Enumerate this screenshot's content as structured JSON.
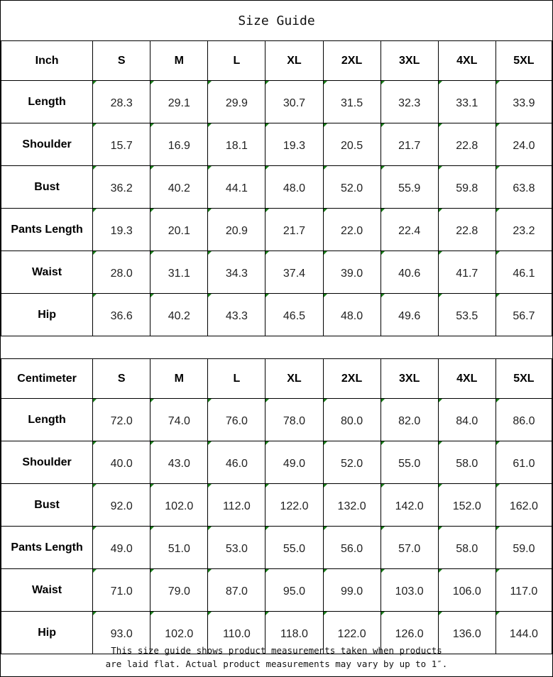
{
  "title": "Size Guide",
  "sizes": [
    "S",
    "M",
    "L",
    "XL",
    "2XL",
    "3XL",
    "4XL",
    "5XL"
  ],
  "tables": [
    {
      "unit": "Inch",
      "rows": [
        {
          "label": "Length",
          "values": [
            "28.3",
            "29.1",
            "29.9",
            "30.7",
            "31.5",
            "32.3",
            "33.1",
            "33.9"
          ]
        },
        {
          "label": "Shoulder",
          "values": [
            "15.7",
            "16.9",
            "18.1",
            "19.3",
            "20.5",
            "21.7",
            "22.8",
            "24.0"
          ]
        },
        {
          "label": "Bust",
          "values": [
            "36.2",
            "40.2",
            "44.1",
            "48.0",
            "52.0",
            "55.9",
            "59.8",
            "63.8"
          ]
        },
        {
          "label": "Pants Length",
          "values": [
            "19.3",
            "20.1",
            "20.9",
            "21.7",
            "22.0",
            "22.4",
            "22.8",
            "23.2"
          ]
        },
        {
          "label": "Waist",
          "values": [
            "28.0",
            "31.1",
            "34.3",
            "37.4",
            "39.0",
            "40.6",
            "41.7",
            "46.1"
          ]
        },
        {
          "label": "Hip",
          "values": [
            "36.6",
            "40.2",
            "43.3",
            "46.5",
            "48.0",
            "49.6",
            "53.5",
            "56.7"
          ]
        }
      ]
    },
    {
      "unit": "Centimeter",
      "rows": [
        {
          "label": "Length",
          "values": [
            "72.0",
            "74.0",
            "76.0",
            "78.0",
            "80.0",
            "82.0",
            "84.0",
            "86.0"
          ]
        },
        {
          "label": "Shoulder",
          "values": [
            "40.0",
            "43.0",
            "46.0",
            "49.0",
            "52.0",
            "55.0",
            "58.0",
            "61.0"
          ]
        },
        {
          "label": "Bust",
          "values": [
            "92.0",
            "102.0",
            "112.0",
            "122.0",
            "132.0",
            "142.0",
            "152.0",
            "162.0"
          ]
        },
        {
          "label": "Pants Length",
          "values": [
            "49.0",
            "51.0",
            "53.0",
            "55.0",
            "56.0",
            "57.0",
            "58.0",
            "59.0"
          ]
        },
        {
          "label": "Waist",
          "values": [
            "71.0",
            "79.0",
            "87.0",
            "95.0",
            "99.0",
            "103.0",
            "106.0",
            "117.0"
          ]
        },
        {
          "label": "Hip",
          "values": [
            "93.0",
            "102.0",
            "110.0",
            "118.0",
            "122.0",
            "126.0",
            "136.0",
            "144.0"
          ]
        }
      ]
    }
  ],
  "footer": {
    "line1": "This size guide shows product measurements taken when products",
    "line2": "are laid flat. Actual product measurements may vary by up to 1″."
  },
  "colors": {
    "cell_marker": "#1a7f1a",
    "border": "#000000"
  }
}
